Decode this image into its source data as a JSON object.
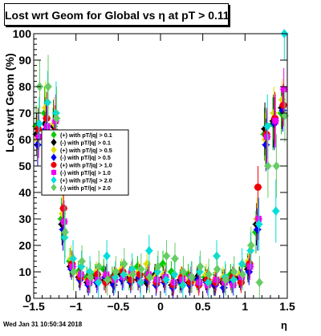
{
  "chart_data": {
    "type": "scatter",
    "title": "Lost wrt Geom for Global vs   η at pT > 0.11",
    "xlabel": "η",
    "ylabel": "Lost wrt Geom (%)",
    "xlim": [
      -1.5,
      1.5
    ],
    "ylim": [
      0,
      100
    ],
    "x_ticks": [
      "−1.5",
      "−1",
      "−0.5",
      "0",
      "0.5",
      "1",
      "1.5"
    ],
    "y_ticks": [
      "0",
      "10",
      "20",
      "30",
      "40",
      "50",
      "60",
      "70",
      "80",
      "90",
      "100"
    ],
    "timestamp": "Wed Jan 31 10:50:34 2018",
    "legend_position": "upper-left",
    "series": [
      {
        "name": "(+) with pT/|q| > 0.1",
        "color": "#00cc00",
        "marker": "diamond",
        "x": [
          -1.45,
          -1.35,
          -1.25,
          -1.15,
          -1.05,
          -0.95,
          -0.85,
          -0.75,
          -0.65,
          -0.55,
          -0.45,
          -0.35,
          -0.25,
          -0.15,
          -0.05,
          0.05,
          0.15,
          0.25,
          0.35,
          0.45,
          0.55,
          0.65,
          0.75,
          0.85,
          0.95,
          1.05,
          1.15,
          1.25,
          1.35,
          1.45
        ],
        "y": [
          65,
          70,
          62,
          30,
          14,
          10,
          8,
          9,
          11,
          8,
          10,
          7,
          12,
          9,
          8,
          13,
          10,
          6,
          9,
          7,
          8,
          6,
          7,
          9,
          8,
          12,
          25,
          62,
          66,
          70
        ],
        "err": [
          8,
          10,
          10,
          8,
          5,
          4,
          4,
          4,
          4,
          4,
          4,
          4,
          4,
          4,
          4,
          5,
          4,
          4,
          4,
          4,
          4,
          4,
          4,
          4,
          4,
          5,
          8,
          10,
          10,
          8
        ]
      },
      {
        "name": "(-) with pT/|q| > 0.1",
        "color": "#000000",
        "marker": "diamond",
        "x": [
          -1.45,
          -1.35,
          -1.25,
          -1.15,
          -1.05,
          -0.95,
          -0.85,
          -0.75,
          -0.65,
          -0.55,
          -0.45,
          -0.35,
          -0.25,
          -0.15,
          -0.05,
          0.05,
          0.15,
          0.25,
          0.35,
          0.45,
          0.55,
          0.65,
          0.75,
          0.85,
          0.95,
          1.05,
          1.15,
          1.25,
          1.35,
          1.45
        ],
        "y": [
          62,
          66,
          65,
          28,
          12,
          8,
          6,
          8,
          7,
          6,
          9,
          8,
          7,
          6,
          9,
          8,
          5,
          7,
          6,
          8,
          7,
          5,
          6,
          7,
          8,
          11,
          28,
          64,
          67,
          72
        ],
        "err": [
          8,
          10,
          10,
          8,
          4,
          4,
          4,
          4,
          4,
          4,
          4,
          4,
          4,
          4,
          4,
          4,
          4,
          4,
          4,
          4,
          4,
          4,
          4,
          4,
          4,
          5,
          8,
          10,
          10,
          8
        ]
      },
      {
        "name": "(+) with pT/|q| > 0.5",
        "color": "#dddd00",
        "marker": "diamond",
        "x": [
          -1.45,
          -1.35,
          -1.25,
          -1.15,
          -1.05,
          -0.95,
          -0.85,
          -0.75,
          -0.65,
          -0.55,
          -0.45,
          -0.35,
          -0.25,
          -0.15,
          -0.05,
          0.05,
          0.15,
          0.25,
          0.35,
          0.45,
          0.55,
          0.65,
          0.75,
          0.85,
          0.95,
          1.05,
          1.15,
          1.25,
          1.35,
          1.45
        ],
        "y": [
          60,
          72,
          66,
          32,
          15,
          9,
          7,
          10,
          8,
          7,
          11,
          9,
          10,
          13,
          8,
          9,
          6,
          8,
          7,
          6,
          9,
          7,
          8,
          6,
          9,
          14,
          30,
          60,
          70,
          75
        ],
        "err": [
          8,
          10,
          10,
          8,
          5,
          4,
          4,
          4,
          4,
          4,
          4,
          4,
          4,
          4,
          4,
          4,
          4,
          4,
          4,
          4,
          4,
          4,
          4,
          4,
          4,
          5,
          8,
          10,
          10,
          8
        ]
      },
      {
        "name": "(-) with pT/|q| > 0.5",
        "color": "#0000ee",
        "marker": "diamond",
        "x": [
          -1.45,
          -1.35,
          -1.25,
          -1.15,
          -1.05,
          -0.95,
          -0.85,
          -0.75,
          -0.65,
          -0.55,
          -0.45,
          -0.35,
          -0.25,
          -0.15,
          -0.05,
          0.05,
          0.15,
          0.25,
          0.35,
          0.45,
          0.55,
          0.65,
          0.75,
          0.85,
          0.95,
          1.05,
          1.15,
          1.25,
          1.35,
          1.45
        ],
        "y": [
          58,
          64,
          60,
          26,
          11,
          7,
          5,
          6,
          8,
          5,
          7,
          6,
          8,
          7,
          5,
          6,
          4,
          6,
          5,
          7,
          6,
          5,
          4,
          6,
          7,
          10,
          26,
          58,
          66,
          71
        ],
        "err": [
          8,
          10,
          10,
          8,
          4,
          4,
          4,
          4,
          4,
          4,
          4,
          4,
          4,
          4,
          4,
          4,
          4,
          4,
          4,
          4,
          4,
          4,
          4,
          4,
          4,
          5,
          8,
          10,
          10,
          8
        ]
      },
      {
        "name": "(+) with pT/|q| > 1.0",
        "color": "#ee0000",
        "marker": "circle",
        "x": [
          -1.45,
          -1.35,
          -1.25,
          -1.15,
          -1.05,
          -0.95,
          -0.85,
          -0.75,
          -0.65,
          -0.55,
          -0.45,
          -0.35,
          -0.25,
          -0.15,
          -0.05,
          0.05,
          0.15,
          0.25,
          0.35,
          0.45,
          0.55,
          0.65,
          0.75,
          0.85,
          0.95,
          1.05,
          1.15,
          1.25,
          1.35,
          1.45
        ],
        "y": [
          64,
          68,
          63,
          34,
          13,
          8,
          7,
          9,
          6,
          8,
          10,
          7,
          9,
          8,
          6,
          7,
          5,
          8,
          6,
          5,
          7,
          6,
          7,
          8,
          6,
          13,
          42,
          62,
          68,
          73
        ],
        "err": [
          8,
          10,
          10,
          8,
          5,
          4,
          4,
          4,
          4,
          4,
          4,
          4,
          4,
          4,
          4,
          4,
          4,
          4,
          4,
          4,
          4,
          4,
          4,
          4,
          4,
          5,
          8,
          10,
          10,
          8
        ]
      },
      {
        "name": "(-) with pT/|q| > 1.0",
        "color": "#ee00ee",
        "marker": "square",
        "x": [
          -1.45,
          -1.35,
          -1.25,
          -1.15,
          -1.05,
          -0.95,
          -0.85,
          -0.75,
          -0.65,
          -0.55,
          -0.45,
          -0.35,
          -0.25,
          -0.15,
          -0.05,
          0.05,
          0.15,
          0.25,
          0.35,
          0.45,
          0.55,
          0.65,
          0.75,
          0.85,
          0.95,
          1.05,
          1.15,
          1.25,
          1.35,
          1.45
        ],
        "y": [
          61,
          65,
          67,
          29,
          12,
          9,
          6,
          7,
          9,
          7,
          8,
          10,
          6,
          9,
          7,
          8,
          6,
          7,
          8,
          6,
          5,
          7,
          6,
          5,
          8,
          12,
          30,
          61,
          67,
          79
        ],
        "err": [
          8,
          10,
          10,
          8,
          4,
          4,
          4,
          4,
          4,
          4,
          4,
          4,
          4,
          4,
          4,
          4,
          4,
          4,
          4,
          4,
          4,
          4,
          4,
          4,
          4,
          5,
          8,
          10,
          10,
          8
        ]
      },
      {
        "name": "(+) with pT/|q| > 2.0",
        "color": "#00dddd",
        "marker": "diamond",
        "x": [
          -1.45,
          -1.35,
          -1.25,
          -1.15,
          -1.05,
          -0.95,
          -0.85,
          -0.75,
          -0.65,
          -0.55,
          -0.45,
          -0.35,
          -0.25,
          -0.15,
          -0.05,
          0.05,
          0.15,
          0.25,
          0.35,
          0.45,
          0.55,
          0.65,
          0.75,
          0.85,
          0.95,
          1.05,
          1.15,
          1.25,
          1.35,
          1.45
        ],
        "y": [
          66,
          74,
          70,
          23,
          15,
          12,
          10,
          6,
          16,
          8,
          9,
          11,
          6,
          18,
          10,
          7,
          9,
          5,
          8,
          10,
          6,
          16,
          8,
          7,
          13,
          18,
          28,
          65,
          33,
          100
        ],
        "err": [
          10,
          12,
          12,
          10,
          7,
          6,
          6,
          6,
          6,
          6,
          6,
          6,
          6,
          6,
          6,
          6,
          6,
          6,
          6,
          6,
          6,
          6,
          6,
          6,
          6,
          7,
          10,
          12,
          12,
          10
        ]
      },
      {
        "name": "(-) with pT/|q| > 2.0",
        "color": "#66cc66",
        "marker": "diamond",
        "x": [
          -1.45,
          -1.35,
          -1.25,
          -1.15,
          -1.05,
          -0.95,
          -0.85,
          -0.75,
          -0.65,
          -0.55,
          -0.45,
          -0.35,
          -0.25,
          -0.15,
          -0.05,
          0.05,
          0.15,
          0.25,
          0.35,
          0.45,
          0.55,
          0.65,
          0.75,
          0.85,
          0.95,
          1.05,
          1.15,
          1.25,
          1.35,
          1.45
        ],
        "y": [
          80,
          80,
          68,
          25,
          10,
          14,
          8,
          12,
          7,
          10,
          13,
          9,
          11,
          8,
          12,
          16,
          15,
          10,
          8,
          12,
          9,
          11,
          7,
          10,
          9,
          20,
          6,
          50,
          50,
          69
        ],
        "err": [
          10,
          12,
          12,
          10,
          7,
          6,
          6,
          6,
          6,
          6,
          6,
          6,
          6,
          6,
          6,
          6,
          6,
          6,
          6,
          6,
          6,
          6,
          6,
          6,
          6,
          7,
          10,
          12,
          12,
          10
        ]
      }
    ]
  }
}
